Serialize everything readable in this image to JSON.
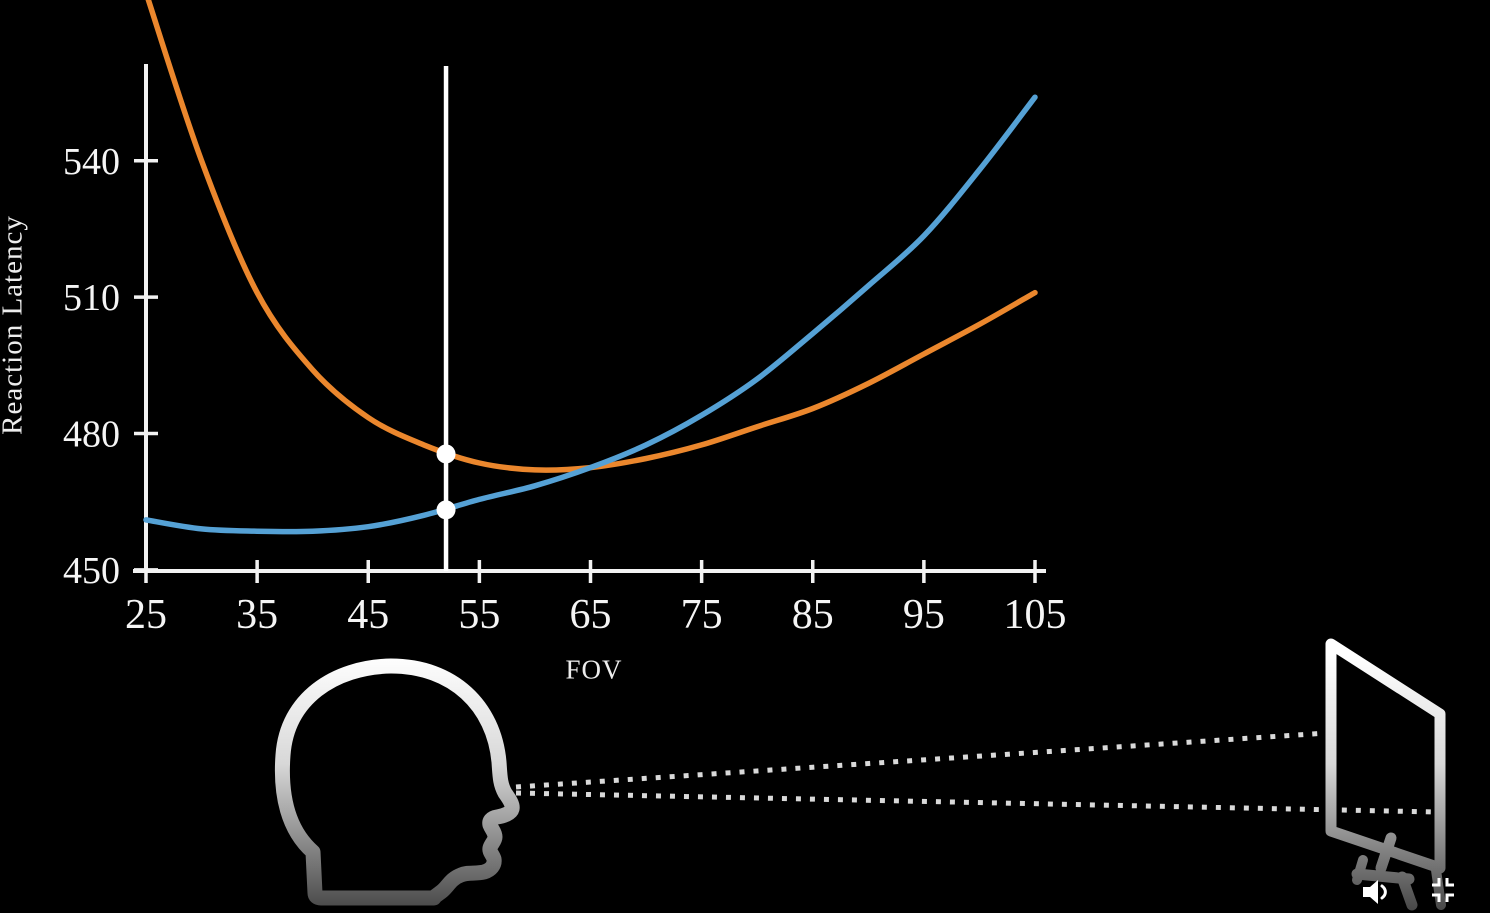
{
  "frame": {
    "background_color": "#000000"
  },
  "chart_data": {
    "type": "line",
    "title": "",
    "xlabel": "FOV",
    "ylabel": "Reaction Latency",
    "xlim": [
      25,
      106
    ],
    "ylim": [
      450,
      561
    ],
    "grid": false,
    "legend": "none",
    "axis_color": "#f2f2f2",
    "tick_label_color": "#f5f5f5",
    "x_ticks": [
      25,
      35,
      45,
      55,
      65,
      75,
      85,
      95,
      105
    ],
    "y_ticks": [
      450,
      480,
      510,
      540
    ],
    "x": [
      25,
      30,
      35,
      40,
      45,
      50,
      55,
      60,
      65,
      70,
      75,
      80,
      85,
      90,
      95,
      100,
      105
    ],
    "series": [
      {
        "name": "orange-curve",
        "color": "#eb872d",
        "values": [
          577,
          540,
          511,
          494,
          483.5,
          477.5,
          473.5,
          472,
          472.5,
          474.5,
          477.5,
          481.5,
          485.5,
          491,
          497.5,
          504,
          511
        ]
      },
      {
        "name": "blue-curve",
        "color": "#55a1d5",
        "values": [
          461,
          459,
          458.5,
          458.5,
          459.5,
          462,
          465.5,
          468.5,
          472.5,
          477.5,
          484,
          492,
          502,
          512.5,
          523.5,
          538,
          554
        ]
      }
    ],
    "marker": {
      "x": 52,
      "color": "#ffffff",
      "points": [
        {
          "series": "orange-curve",
          "y": 475.5
        },
        {
          "series": "blue-curve",
          "y": 463.2
        }
      ]
    }
  },
  "illustration": {
    "head_icon": "human-head-profile-outline",
    "monitor_icon": "tilted-monitor-outline",
    "gaze_lines": "dotted-sight-lines-from-eye-to-monitor"
  },
  "player": {
    "controls": [
      {
        "id": "volume",
        "icon": "speaker-with-sound-wave"
      },
      {
        "id": "exit-fullscreen",
        "icon": "four-corners-inward"
      }
    ]
  }
}
